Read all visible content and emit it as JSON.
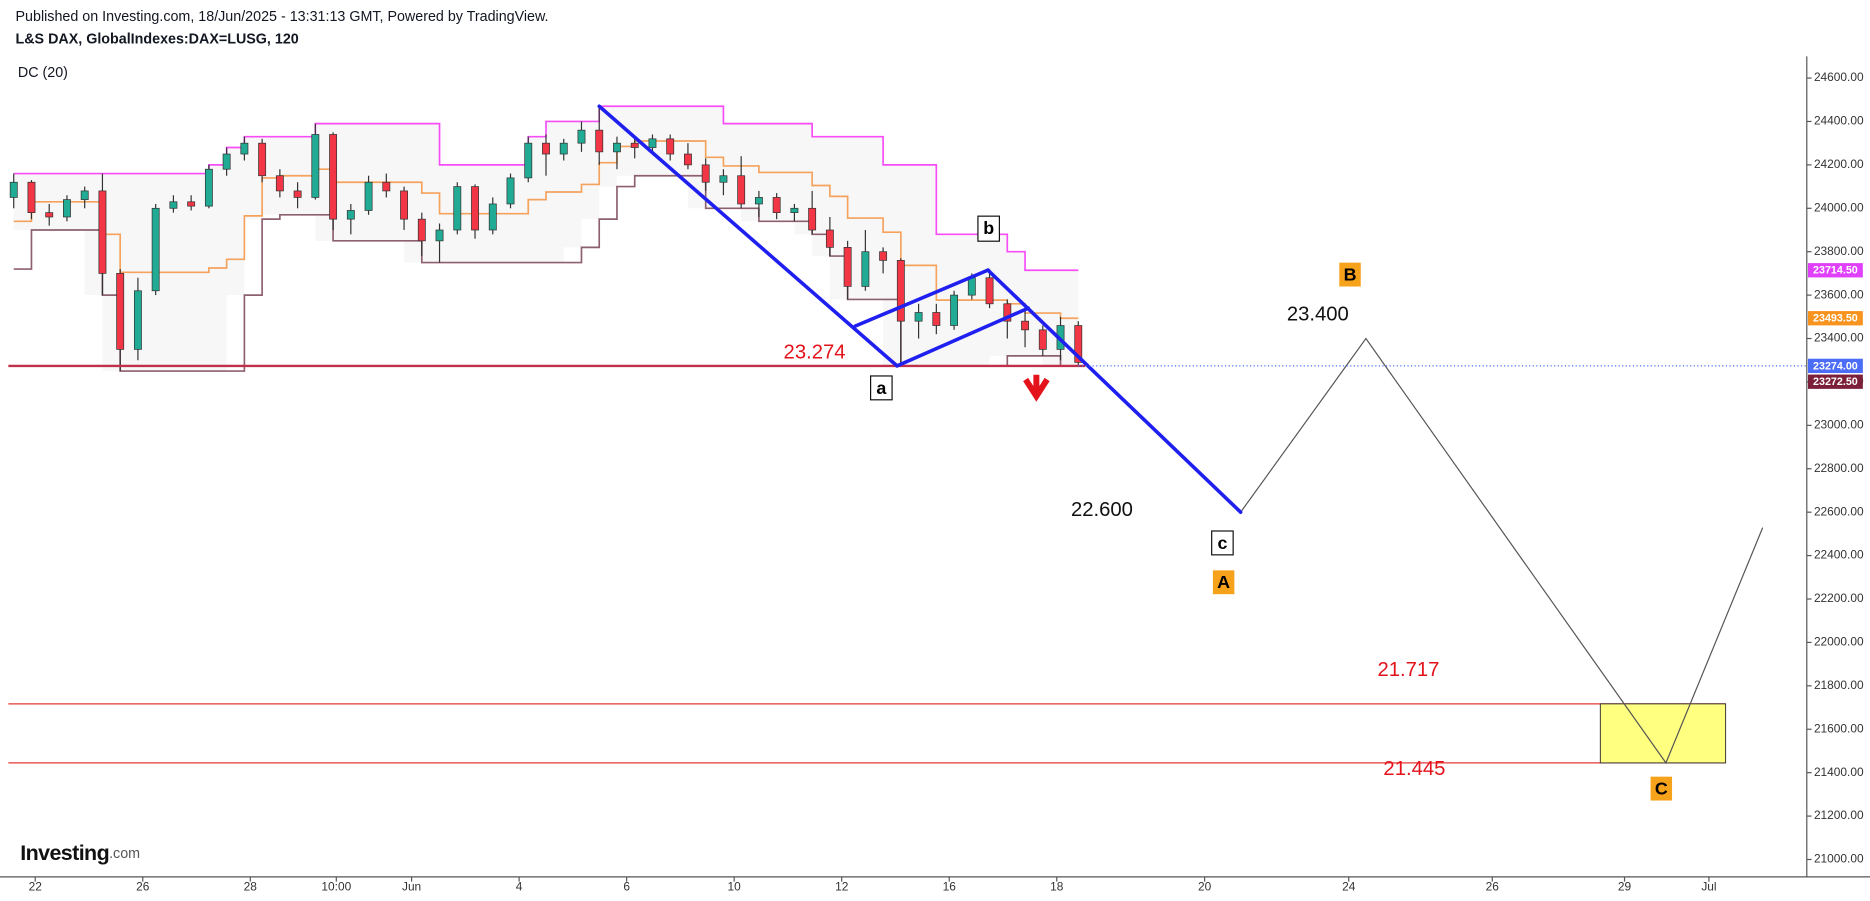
{
  "chart_data": {
    "type": "candlestick",
    "publisher": "Published on Investing.com, 18/Jun/2025 - 13:31:13 GMT, Powered by TradingView.",
    "title": "L&S DAX, GlobalIndexes:DAX=LUSG, 120",
    "indicator": "DC (20)",
    "brand": "Investing",
    "brand_suffix": ".com",
    "x": [
      -0.4,
      -0.07,
      0.26,
      0.59,
      0.92,
      1.25,
      1.58,
      1.91,
      2.24,
      2.57,
      2.9,
      3.23,
      3.56,
      3.89,
      4.22,
      4.55,
      4.88,
      5.21,
      5.54,
      5.87,
      6.2,
      6.53,
      6.86,
      7.19,
      7.52,
      7.85,
      8.18,
      8.51,
      8.84,
      9.17,
      9.5,
      9.83,
      10.16,
      10.49,
      10.82,
      11.15,
      11.48,
      11.81,
      12.14,
      12.47,
      12.8,
      13.13,
      13.46,
      13.79,
      14.12,
      14.45,
      14.78,
      15.11,
      15.44,
      15.77,
      16.1,
      16.43,
      16.76,
      17.09,
      17.42,
      17.75,
      18.08,
      18.41,
      18.74,
      19.07,
      19.4
    ],
    "open": [
      24050,
      24120,
      23980,
      23960,
      24040,
      24080,
      23700,
      23350,
      23620,
      24000,
      24030,
      24010,
      24180,
      24250,
      24300,
      24150,
      24080,
      24050,
      24340,
      23950,
      23990,
      24120,
      24080,
      23950,
      23850,
      23900,
      24100,
      23900,
      24020,
      24140,
      24300,
      24250,
      24300,
      24360,
      24260,
      24300,
      24280,
      24320,
      24250,
      24200,
      24120,
      24150,
      24020,
      24050,
      23980,
      24000,
      23900,
      23820,
      23640,
      23800,
      23760,
      23480,
      23520,
      23460,
      23600,
      23680,
      23560,
      23480,
      23440,
      23350,
      23460
    ],
    "high": [
      24160,
      24130,
      24020,
      24060,
      24100,
      24160,
      23720,
      23680,
      24020,
      24060,
      24060,
      24200,
      24280,
      24330,
      24320,
      24180,
      24120,
      24390,
      24350,
      24020,
      24150,
      24160,
      24100,
      23980,
      23930,
      24120,
      24110,
      24050,
      24160,
      24330,
      24340,
      24320,
      24400,
      24470,
      24330,
      24330,
      24340,
      24340,
      24300,
      24230,
      24180,
      24240,
      24080,
      24070,
      24020,
      24080,
      23960,
      23850,
      23900,
      23820,
      23770,
      23560,
      23560,
      23620,
      23700,
      23720,
      23580,
      23540,
      23460,
      23500,
      23480
    ],
    "low": [
      24000,
      23950,
      23920,
      23940,
      24000,
      23600,
      23250,
      23300,
      23600,
      23980,
      23990,
      24000,
      24150,
      24220,
      24120,
      24050,
      24000,
      24040,
      23900,
      23880,
      23970,
      24050,
      23900,
      23780,
      23750,
      23880,
      23860,
      23880,
      24000,
      24120,
      24150,
      24220,
      24260,
      24200,
      24180,
      24230,
      24250,
      24220,
      24180,
      24080,
      24060,
      24000,
      23960,
      23950,
      23940,
      23880,
      23780,
      23580,
      23620,
      23700,
      23274,
      23400,
      23420,
      23440,
      23580,
      23540,
      23400,
      23360,
      23320,
      23300,
      23274
    ],
    "close": [
      24120,
      23980,
      23960,
      24040,
      24080,
      23700,
      23350,
      23620,
      24000,
      24030,
      24010,
      24180,
      24250,
      24300,
      24150,
      24080,
      24050,
      24340,
      23950,
      23990,
      24120,
      24080,
      23950,
      23850,
      23900,
      24100,
      23900,
      24020,
      24140,
      24300,
      24250,
      24300,
      24360,
      24260,
      24300,
      24280,
      24320,
      24250,
      24200,
      24120,
      24150,
      24020,
      24050,
      23980,
      24000,
      23900,
      23820,
      23640,
      23800,
      23760,
      23480,
      23520,
      23460,
      23600,
      23680,
      23560,
      23480,
      23440,
      23350,
      23460,
      23290
    ],
    "up_color": "#22ab94",
    "down_color": "#f23645",
    "series": [
      {
        "color": "#f74df7",
        "values": [
          24160,
          24160,
          24160,
          24160,
          24160,
          24160,
          24160,
          24160,
          24160,
          24160,
          24160,
          24200,
          24280,
          24330,
          24330,
          24330,
          24330,
          24390,
          24390,
          24390,
          24390,
          24390,
          24390,
          24390,
          24200,
          24200,
          24200,
          24200,
          24200,
          24330,
          24400,
          24400,
          24400,
          24470,
          24470,
          24470,
          24470,
          24470,
          24470,
          24470,
          24390,
          24390,
          24390,
          24390,
          24390,
          24330,
          24330,
          24330,
          24330,
          24200,
          24200,
          24200,
          23880,
          23880,
          23880,
          23880,
          23800,
          23714.5,
          23714.5,
          23714.5,
          23714.5
        ]
      },
      {
        "color": "#f5a25d",
        "values": [
          23940,
          24030,
          24030,
          24030,
          24030,
          23880,
          23705,
          23705,
          23705,
          23705,
          23705,
          23725,
          23765,
          23965,
          24140,
          24150,
          24150,
          24180,
          24120,
          24120,
          24120,
          24120,
          24120,
          24070,
          23975,
          23975,
          23975,
          23975,
          23975,
          24040,
          24075,
          24075,
          24110,
          24210,
          24285,
          24310,
          24310,
          24310,
          24310,
          24235,
          24195,
          24195,
          24165,
          24165,
          24165,
          24105,
          24055,
          23955,
          23955,
          23890,
          23737,
          23737,
          23577,
          23577,
          23577,
          23577,
          23560,
          23517.25,
          23517.25,
          23493.5,
          23493.5
        ]
      },
      {
        "color": "#8d6070",
        "values": [
          23720,
          23900,
          23900,
          23900,
          23900,
          23600,
          23250,
          23250,
          23250,
          23250,
          23250,
          23250,
          23250,
          23600,
          23950,
          23970,
          23970,
          23970,
          23850,
          23850,
          23850,
          23850,
          23850,
          23750,
          23750,
          23750,
          23750,
          23750,
          23750,
          23750,
          23750,
          23750,
          23820,
          23950,
          24100,
          24150,
          24150,
          24150,
          24150,
          24000,
          24000,
          24000,
          23940,
          23940,
          23940,
          23880,
          23780,
          23580,
          23580,
          23580,
          23274,
          23274,
          23274,
          23274,
          23274,
          23274,
          23320,
          23320,
          23320,
          23272.5,
          23272.5
        ]
      }
    ],
    "xlim": [
      -0.5,
      32.95
    ],
    "xticks": [
      {
        "value": 0,
        "label": "22"
      },
      {
        "value": 2,
        "label": "26"
      },
      {
        "value": 4,
        "label": "28"
      },
      {
        "value": 5.6,
        "label": "10:00"
      },
      {
        "value": 7,
        "label": "Jun"
      },
      {
        "value": 9,
        "label": "4"
      },
      {
        "value": 11,
        "label": "6"
      },
      {
        "value": 13,
        "label": "10"
      },
      {
        "value": 15,
        "label": "12"
      },
      {
        "value": 17,
        "label": "16"
      },
      {
        "value": 19,
        "label": "18"
      },
      {
        "value": 21.75,
        "label": "20"
      },
      {
        "value": 24.43,
        "label": "24"
      },
      {
        "value": 27.1,
        "label": "26"
      },
      {
        "value": 29.56,
        "label": "29"
      },
      {
        "value": 31.13,
        "label": "Jul"
      }
    ],
    "ylim": [
      20920,
      24700
    ],
    "yticks": [
      {
        "value": 21000,
        "label": "21000.00"
      },
      {
        "value": 21200,
        "label": "21200.00"
      },
      {
        "value": 21400,
        "label": "21400.00"
      },
      {
        "value": 21600,
        "label": "21600.00"
      },
      {
        "value": 21800,
        "label": "21800.00"
      },
      {
        "value": 22000,
        "label": "22000.00"
      },
      {
        "value": 22200,
        "label": "22200.00"
      },
      {
        "value": 22400,
        "label": "22400.00"
      },
      {
        "value": 22600,
        "label": "22600.00"
      },
      {
        "value": 22800,
        "label": "22800.00"
      },
      {
        "value": 23000,
        "label": "23000.00"
      },
      {
        "value": 23200,
        "label": "23200.00"
      },
      {
        "value": 23400,
        "label": "23400.00"
      },
      {
        "value": 23600,
        "label": "23600.00"
      },
      {
        "value": 23800,
        "label": "23800.00"
      },
      {
        "value": 24000,
        "label": "24000.00"
      },
      {
        "value": 24200,
        "label": "24200.00"
      },
      {
        "value": 24400,
        "label": "24400.00"
      },
      {
        "value": 24600,
        "label": "24600.00"
      }
    ],
    "price_labels": [
      {
        "value": 23714.5,
        "label": "23714.50",
        "color": "#e040fb"
      },
      {
        "value": 23493.5,
        "label": "23493.50",
        "color": "#f7931e"
      },
      {
        "value": 23274,
        "label": "23274.00",
        "color": "#4a6cf7",
        "line_style": "dotted"
      },
      {
        "value": 23272.5,
        "label": "23272.50",
        "color": "#7b1f3a"
      }
    ],
    "levels": [
      {
        "value": 23274,
        "label": "23.274",
        "x_end": 19.53,
        "color": "#c0304a",
        "width": 2
      },
      {
        "value": 21717,
        "label": "21.717",
        "x_end": 31.44,
        "color": "#e53935",
        "width": 1
      },
      {
        "value": 21445,
        "label": "21.445",
        "x_end": 31.44,
        "color": "#e53935",
        "width": 1
      }
    ],
    "targets": [
      {
        "value": 23400,
        "label": "23.400"
      },
      {
        "value": 22600,
        "label": "22.600"
      }
    ],
    "wave_lines": {
      "color": "#1f1fef",
      "segments": [
        {
          "x": [
            10.49,
            16.03
          ],
          "y": [
            24470,
            23274
          ]
        },
        {
          "x": [
            15.25,
            17.72
          ],
          "y": [
            23457,
            23715
          ]
        },
        {
          "x": [
            16.03,
            18.47
          ],
          "y": [
            23274,
            23540
          ]
        },
        {
          "x": [
            17.72,
            22.42
          ],
          "y": [
            23715,
            22600
          ]
        }
      ]
    },
    "projection": {
      "color": "#555555",
      "x": [
        22.42,
        24.75,
        30.33,
        32.13
      ],
      "y": [
        22600,
        23400,
        21445,
        22529
      ]
    },
    "target_box": {
      "x": [
        29.11,
        31.44
      ],
      "y": [
        21445,
        21717
      ],
      "color": "#ffff80"
    },
    "wave_labels": [
      "a",
      "b",
      "c"
    ],
    "degree_labels": [
      "A",
      "B",
      "C"
    ]
  }
}
